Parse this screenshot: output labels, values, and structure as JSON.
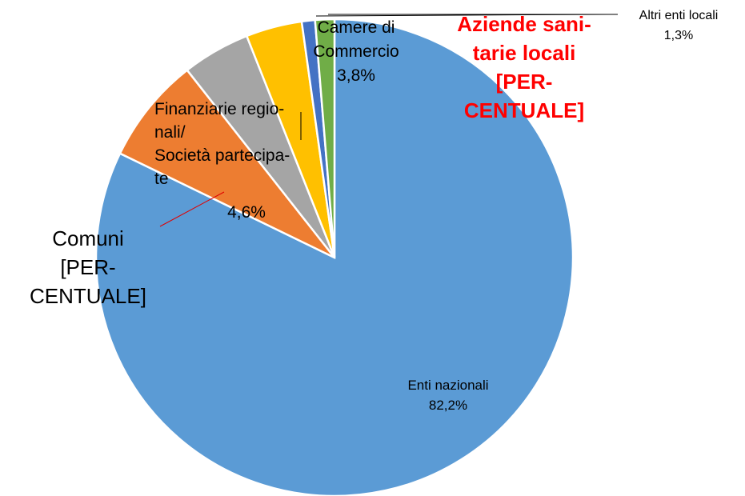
{
  "chart_data": {
    "type": "pie",
    "categories": [
      "Enti nazionali",
      "Comuni",
      "Finanziarie regio-\nnali/\nSocietà partecipa-\nte",
      "Camere di\nCommercio",
      "Aziende sani-\ntarie locali",
      "Altri enti locali"
    ],
    "values": [
      82.2,
      7.2,
      4.6,
      3.8,
      0.9,
      1.3
    ],
    "value_labels": [
      "82,2%",
      "[PER-\nCENTUALE]",
      "4,6%",
      "3,8%",
      "[PER-\nCENTUALE]",
      "1,3%"
    ],
    "colors": [
      "#5b9bd5",
      "#ed7d31",
      "#a5a5a5",
      "#ffc000",
      "#4472c4",
      "#70ad47"
    ]
  }
}
